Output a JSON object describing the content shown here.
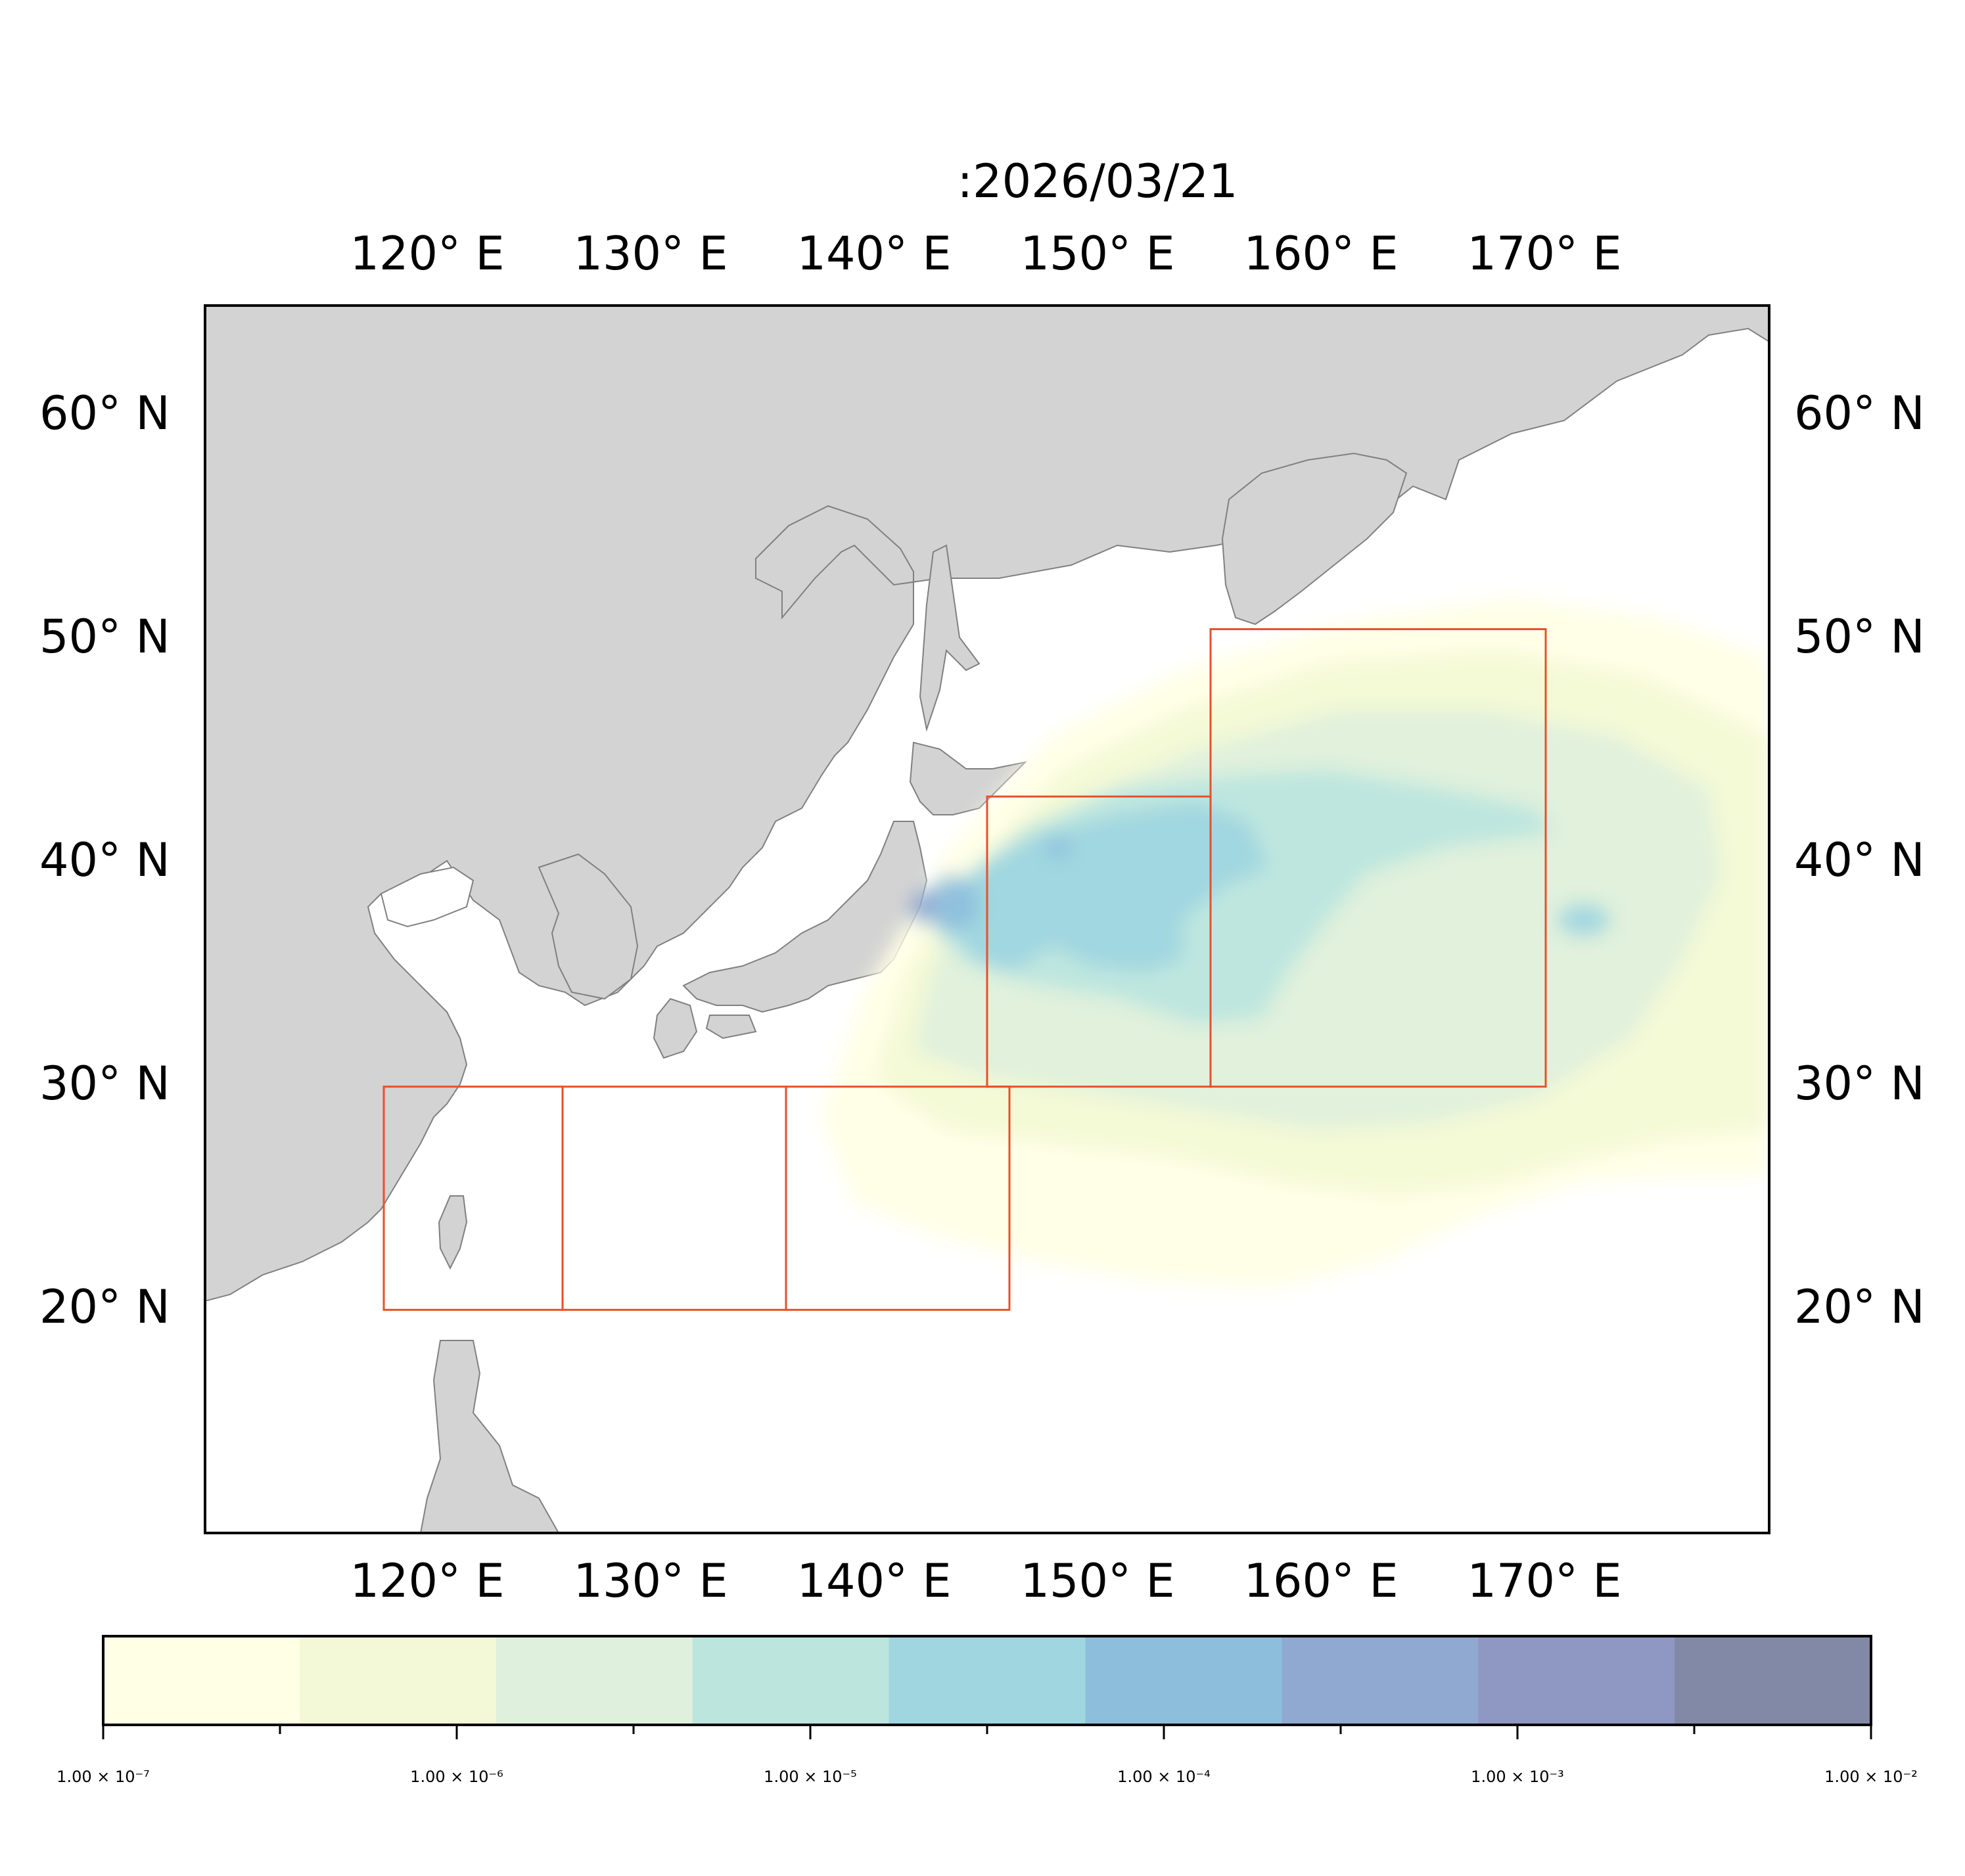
{
  "title": ":2026/03/21",
  "map": {
    "extent": {
      "lon": [
        110,
        180
      ],
      "lat": [
        10,
        65
      ]
    },
    "lon_ticks": [
      "120° E",
      "130° E",
      "140° E",
      "150° E",
      "160° E",
      "170° E"
    ],
    "lat_ticks": [
      "60° N",
      "50° N",
      "40° N",
      "30° N",
      "20° N"
    ],
    "colors": {
      "land": "#d3d3d3",
      "coast": "#808080",
      "ocean": "#ffffff",
      "box": "#e8502a"
    },
    "boxes": [
      {
        "lon": [
          118,
          126
        ],
        "lat": [
          20,
          30
        ]
      },
      {
        "lon": [
          126,
          136
        ],
        "lat": [
          20,
          30
        ]
      },
      {
        "lon": [
          136,
          146
        ],
        "lat": [
          20,
          30
        ]
      },
      {
        "lon": [
          145,
          155
        ],
        "lat": [
          30,
          43
        ]
      },
      {
        "lon": [
          155,
          170
        ],
        "lat": [
          30,
          50.5
        ]
      }
    ]
  },
  "colorbar": {
    "colors": [
      "#ffffe6",
      "#f3f9d6",
      "#dff0dc",
      "#bce5de",
      "#9fd6df",
      "#8dbfdc",
      "#90a9d1",
      "#8f98c2",
      "#8289a6"
    ],
    "tick_labels": [
      "1.00 × 10⁻⁷",
      "1.00 × 10⁻⁶",
      "1.00 × 10⁻⁵",
      "1.00 × 10⁻⁴",
      "1.00 × 10⁻³",
      "1.00 × 10⁻²"
    ]
  }
}
